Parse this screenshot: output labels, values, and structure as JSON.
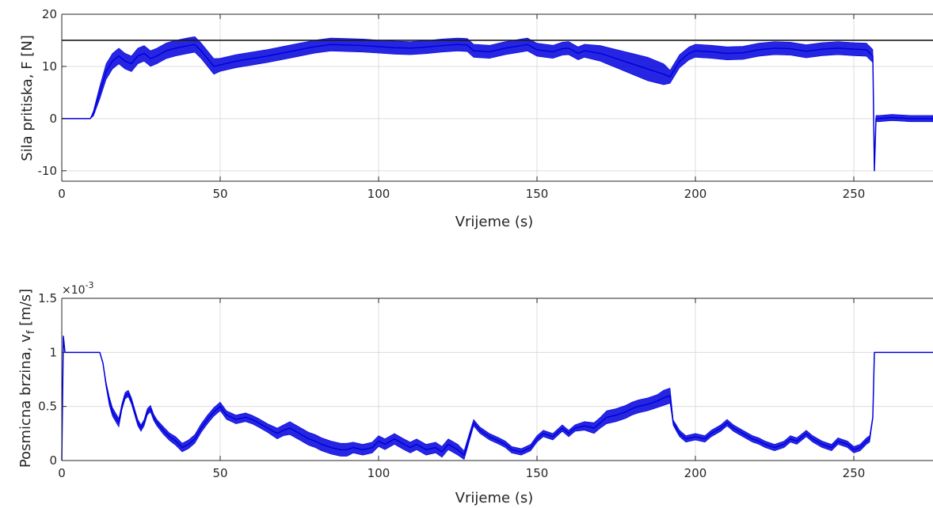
{
  "chart_data": [
    {
      "type": "line",
      "xlabel": "Vrijeme (s)",
      "ylabel": "Sila pritiska, F [N]",
      "xlim": [
        0,
        275
      ],
      "ylim": [
        -12,
        20
      ],
      "x_ticks": [
        0,
        50,
        100,
        150,
        200,
        250
      ],
      "y_ticks": [
        -10,
        0,
        10,
        20
      ],
      "y_tick_labels": [
        "-10",
        "0",
        "10",
        "20"
      ],
      "grid": true,
      "reference_line": {
        "y": 15,
        "color": "#1a1a1a"
      },
      "series": [
        {
          "color": "#0000dd",
          "x": [
            0,
            5,
            9,
            10,
            12,
            14,
            16,
            18,
            20,
            22,
            24,
            26,
            28,
            30,
            33,
            36,
            40,
            42,
            44,
            46,
            48,
            50,
            55,
            60,
            65,
            70,
            75,
            80,
            85,
            90,
            95,
            100,
            105,
            110,
            115,
            120,
            125,
            128,
            130,
            135,
            140,
            145,
            147,
            150,
            155,
            158,
            160,
            163,
            165,
            170,
            175,
            180,
            185,
            190,
            192,
            195,
            198,
            200,
            205,
            210,
            215,
            220,
            225,
            230,
            235,
            240,
            245,
            250,
            254,
            256,
            256.5,
            257,
            257.5,
            258,
            262,
            268,
            275
          ],
          "y": [
            0,
            0,
            0,
            1,
            5,
            9,
            11,
            12,
            11,
            10.5,
            12,
            12.5,
            11.5,
            12,
            13,
            13.5,
            14,
            14.2,
            13,
            11.5,
            10,
            10.3,
            11,
            11.5,
            12,
            12.6,
            13.2,
            13.8,
            14.2,
            14.1,
            14,
            13.8,
            13.6,
            13.5,
            13.7,
            14,
            14.2,
            14.1,
            13,
            12.8,
            13.5,
            14,
            14.2,
            13.2,
            12.8,
            13.4,
            13.5,
            12.5,
            13,
            12.5,
            11.5,
            10.5,
            9.5,
            8.5,
            8,
            11,
            12.5,
            13,
            12.8,
            12.5,
            12.6,
            13.2,
            13.5,
            13.4,
            12.9,
            13.3,
            13.5,
            13.3,
            13.2,
            12,
            -10,
            0,
            0,
            0,
            0.2,
            0,
            0
          ],
          "band": [
            0,
            0,
            0,
            1,
            2.5,
            3,
            3,
            3,
            3,
            3,
            3,
            3,
            3,
            3,
            3,
            3,
            3,
            3,
            3,
            3,
            3,
            2.5,
            2.5,
            2.5,
            2.5,
            2.5,
            2.5,
            2.5,
            2.5,
            2.5,
            2.5,
            2.5,
            2.5,
            2.5,
            2.5,
            2.5,
            2.5,
            2.5,
            2.5,
            2.5,
            2.5,
            2.5,
            2.5,
            2.5,
            2.5,
            2.5,
            2.5,
            2.5,
            2.5,
            3,
            3.5,
            4,
            4.5,
            4,
            2.5,
            2.5,
            2.5,
            2.5,
            2.5,
            2.5,
            2.5,
            2.5,
            2.5,
            2.5,
            2.5,
            2.5,
            2.5,
            2.5,
            2.5,
            2.5,
            0,
            1.2,
            1.2,
            1.2,
            1.2,
            1.2,
            1.2
          ]
        }
      ]
    },
    {
      "type": "line",
      "xlabel": "Vrijeme (s)",
      "ylabel": "Posmicna brzina, v",
      "ylabel_subscript": "f",
      "ylabel_units": " [m/s]",
      "y_multiplier_base": "×10",
      "y_multiplier_exp": "-3",
      "xlim": [
        0,
        275
      ],
      "ylim": [
        0,
        1.5
      ],
      "x_ticks": [
        0,
        50,
        100,
        150,
        200,
        250
      ],
      "y_ticks": [
        0,
        0.5,
        1,
        1.5
      ],
      "y_tick_labels": [
        "0",
        "0.5",
        "1",
        "1.5"
      ],
      "grid": true,
      "series": [
        {
          "color": "#0000dd",
          "x": [
            0,
            0.5,
            1,
            2,
            4,
            8,
            12,
            13,
            14,
            15,
            16,
            17,
            18,
            19,
            20,
            21,
            22,
            23,
            24,
            25,
            26,
            27,
            28,
            29,
            30,
            32,
            34,
            36,
            38,
            40,
            42,
            44,
            46,
            48,
            50,
            52,
            55,
            58,
            60,
            62,
            65,
            68,
            70,
            72,
            75,
            78,
            80,
            82,
            85,
            88,
            90,
            92,
            95,
            98,
            100,
            102,
            105,
            108,
            110,
            112,
            115,
            118,
            120,
            122,
            125,
            127,
            128,
            130,
            132,
            135,
            138,
            140,
            142,
            145,
            148,
            150,
            152,
            155,
            158,
            160,
            162,
            165,
            168,
            170,
            172,
            175,
            178,
            180,
            182,
            185,
            188,
            190,
            192,
            193,
            194,
            195,
            197,
            200,
            203,
            205,
            208,
            210,
            212,
            215,
            218,
            220,
            222,
            225,
            228,
            230,
            232,
            235,
            237,
            240,
            243,
            245,
            248,
            250,
            252,
            254,
            255,
            256,
            256.5,
            257,
            257.5,
            258,
            262,
            268,
            275
          ],
          "y": [
            0,
            1.15,
            1,
            1,
            1,
            1,
            1,
            0.9,
            0.7,
            0.55,
            0.45,
            0.4,
            0.35,
            0.5,
            0.6,
            0.62,
            0.55,
            0.45,
            0.35,
            0.3,
            0.35,
            0.45,
            0.48,
            0.4,
            0.35,
            0.28,
            0.22,
            0.18,
            0.12,
            0.15,
            0.2,
            0.3,
            0.38,
            0.45,
            0.5,
            0.42,
            0.38,
            0.4,
            0.38,
            0.35,
            0.3,
            0.25,
            0.28,
            0.3,
            0.25,
            0.2,
            0.18,
            0.15,
            0.12,
            0.1,
            0.1,
            0.12,
            0.1,
            0.12,
            0.18,
            0.15,
            0.2,
            0.15,
            0.12,
            0.15,
            0.1,
            0.12,
            0.08,
            0.15,
            0.1,
            0.05,
            0.15,
            0.35,
            0.28,
            0.22,
            0.18,
            0.15,
            0.1,
            0.08,
            0.12,
            0.2,
            0.25,
            0.22,
            0.3,
            0.25,
            0.3,
            0.32,
            0.3,
            0.35,
            0.4,
            0.42,
            0.45,
            0.48,
            0.5,
            0.52,
            0.55,
            0.58,
            0.6,
            0.35,
            0.3,
            0.25,
            0.2,
            0.22,
            0.2,
            0.25,
            0.3,
            0.35,
            0.3,
            0.25,
            0.2,
            0.18,
            0.15,
            0.12,
            0.15,
            0.2,
            0.18,
            0.25,
            0.2,
            0.15,
            0.12,
            0.18,
            0.15,
            0.1,
            0.12,
            0.18,
            0.2,
            0.4,
            1,
            1,
            1,
            1,
            1,
            1,
            1
          ],
          "band": [
            0,
            0,
            0,
            0,
            0,
            0,
            0,
            0,
            0.05,
            0.08,
            0.08,
            0.08,
            0.08,
            0.06,
            0.06,
            0.06,
            0.06,
            0.06,
            0.06,
            0.06,
            0.06,
            0.06,
            0.06,
            0.06,
            0.06,
            0.07,
            0.07,
            0.08,
            0.08,
            0.08,
            0.08,
            0.08,
            0.08,
            0.08,
            0.08,
            0.08,
            0.08,
            0.08,
            0.08,
            0.08,
            0.08,
            0.1,
            0.1,
            0.12,
            0.12,
            0.12,
            0.12,
            0.12,
            0.12,
            0.12,
            0.12,
            0.1,
            0.1,
            0.1,
            0.1,
            0.1,
            0.1,
            0.1,
            0.1,
            0.1,
            0.1,
            0.1,
            0.1,
            0.1,
            0.1,
            0.08,
            0.08,
            0.06,
            0.06,
            0.06,
            0.06,
            0.06,
            0.06,
            0.06,
            0.06,
            0.06,
            0.06,
            0.06,
            0.06,
            0.06,
            0.06,
            0.08,
            0.1,
            0.1,
            0.12,
            0.12,
            0.12,
            0.12,
            0.12,
            0.12,
            0.12,
            0.14,
            0.14,
            0.05,
            0.06,
            0.06,
            0.06,
            0.06,
            0.06,
            0.06,
            0.06,
            0.06,
            0.06,
            0.06,
            0.06,
            0.06,
            0.06,
            0.06,
            0.06,
            0.06,
            0.06,
            0.06,
            0.06,
            0.06,
            0.06,
            0.06,
            0.06,
            0.06,
            0.06,
            0.06,
            0.06,
            0.02,
            0,
            0,
            0,
            0,
            0,
            0,
            0
          ]
        }
      ]
    }
  ]
}
